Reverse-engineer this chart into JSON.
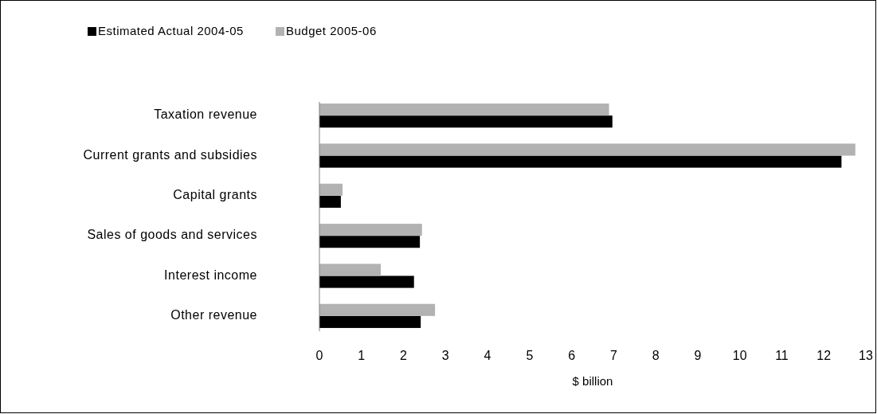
{
  "chart_data": {
    "type": "bar",
    "orientation": "horizontal",
    "categories": [
      "Taxation revenue",
      "Current grants and subsidies",
      "Capital grants",
      "Sales of goods and services",
      "Interest income",
      "Other revenue"
    ],
    "series": [
      {
        "name": "Estimated Actual 2004-05",
        "color": "#000000",
        "values": [
          6.97,
          12.42,
          0.51,
          2.39,
          2.25,
          2.41
        ]
      },
      {
        "name": "Budget 2005-06",
        "color": "#b2b2b2",
        "values": [
          6.89,
          12.75,
          0.55,
          2.44,
          1.46,
          2.75
        ]
      }
    ],
    "xlim": [
      0,
      13
    ],
    "xticks": [
      0,
      1,
      2,
      3,
      4,
      5,
      6,
      7,
      8,
      9,
      10,
      11,
      12,
      13
    ],
    "xlabel": "$ billion",
    "legend": "top left",
    "grid": false
  }
}
